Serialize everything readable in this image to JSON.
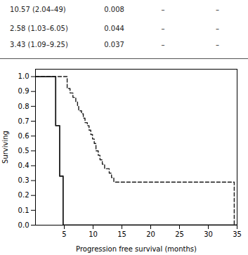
{
  "chart_data": {
    "type": "line",
    "title": "",
    "xlabel": "Progression free survival (months)",
    "ylabel": "Surviving",
    "xlim": [
      0,
      35
    ],
    "ylim": [
      0.0,
      1.05
    ],
    "xticks": [
      5,
      10,
      15,
      20,
      25,
      30,
      35
    ],
    "yticks": [
      {
        "value": 0.0,
        "label": "0.0"
      },
      0.1,
      0.2,
      0.3,
      0.4,
      0.5,
      0.6,
      0.7,
      0.8,
      0.9,
      {
        "value": 1.0,
        "label": "1.0"
      }
    ],
    "grid": false,
    "series": [
      {
        "color": "#1a1a1a",
        "line_style": "solid",
        "x": [
          0,
          3.5,
          3.5,
          4.2,
          4.2,
          4.8,
          4.8,
          35
        ],
        "values": [
          1.0,
          1.0,
          0.67,
          0.67,
          0.33,
          0.33,
          0.0,
          0.0
        ]
      },
      {
        "color": "#1a1a1a",
        "line_style": "dashed",
        "x": [
          0,
          4.8,
          5.5,
          6.0,
          6.5,
          7.0,
          7.3,
          7.5,
          7.8,
          8.0,
          8.3,
          8.6,
          9.0,
          9.3,
          9.6,
          9.9,
          10.2,
          10.5,
          10.9,
          11.2,
          11.6,
          12.0,
          12.4,
          12.8,
          13.2,
          13.6,
          34.5,
          34.5
        ],
        "values": [
          1.0,
          1.0,
          0.92,
          0.89,
          0.86,
          0.83,
          0.8,
          0.77,
          0.77,
          0.75,
          0.72,
          0.69,
          0.67,
          0.64,
          0.61,
          0.58,
          0.55,
          0.5,
          0.47,
          0.44,
          0.41,
          0.38,
          0.38,
          0.35,
          0.32,
          0.29,
          0.29,
          0.0
        ]
      }
    ],
    "table": [
      [
        "10.57 (2.04–49)",
        "0.008",
        "–",
        "–"
      ],
      [
        "2.58 (1.03–6.05)",
        "0.044",
        "–",
        "–"
      ],
      [
        "3.43 (1.09–9.25)",
        "0.037",
        "–",
        "–"
      ]
    ]
  }
}
